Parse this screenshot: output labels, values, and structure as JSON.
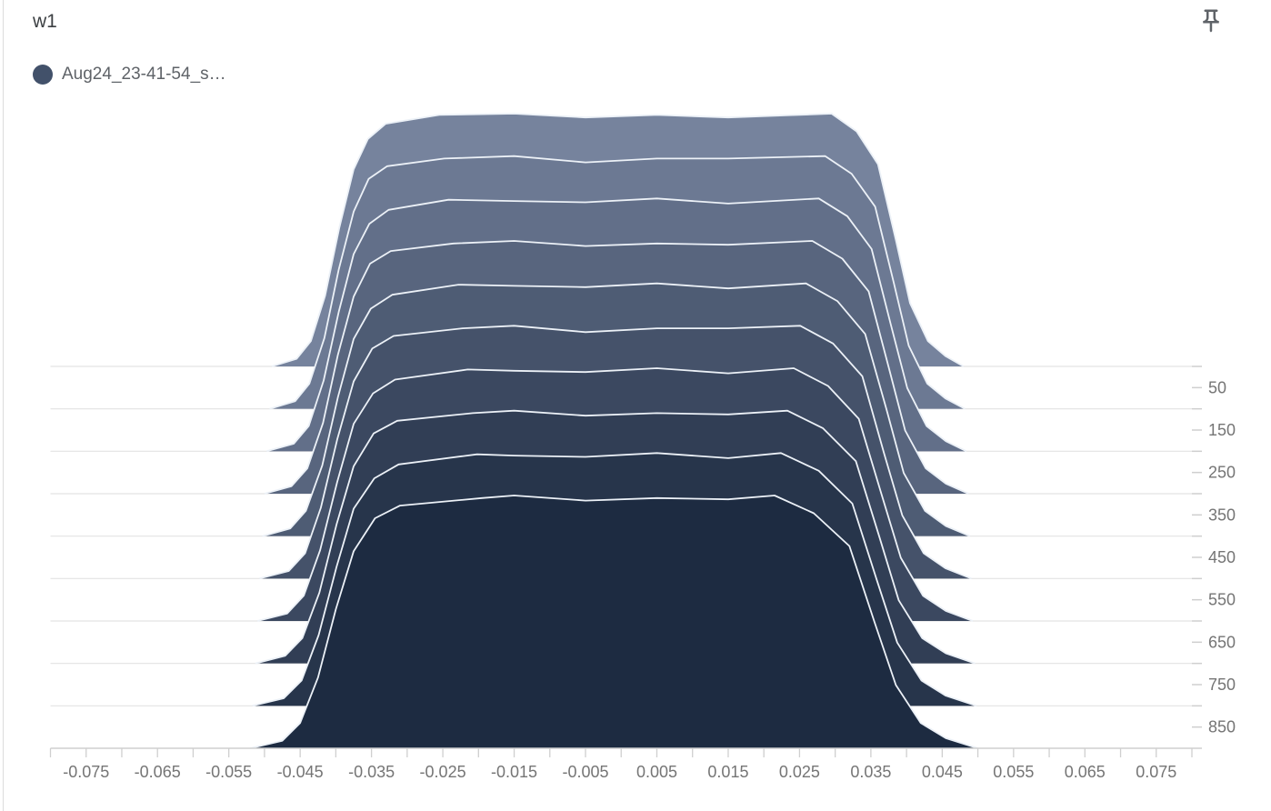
{
  "card": {
    "title": "w1"
  },
  "legend": {
    "run_label": "Aug24_23-41-54_s…",
    "run_color": "#42516a"
  },
  "toolbar": {
    "pin_icon": "push-pin-icon",
    "pin_color": "#5f6368"
  },
  "chart_data": {
    "type": "histogram-ridgeline",
    "title": "w1",
    "run": "Aug24_23-41-54_s…",
    "xlim": [
      -0.08,
      0.08
    ],
    "x_minor_tick_step": 0.005,
    "x_tick_labels": [
      -0.075,
      -0.065,
      -0.055,
      -0.045,
      -0.035,
      -0.025,
      -0.015,
      -0.005,
      0.005,
      0.015,
      0.025,
      0.035,
      0.045,
      0.055,
      0.065,
      0.075
    ],
    "step_axis": {
      "range": [
        0,
        900
      ],
      "gridline_every": 100,
      "tick_every": 50,
      "label_ticks": [
        50,
        150,
        250,
        350,
        450,
        550,
        650,
        750,
        850
      ]
    },
    "steps": [
      0,
      100,
      200,
      300,
      400,
      500,
      600,
      700,
      800,
      900
    ],
    "fill_colors": [
      "#76839d",
      "#6c7993",
      "#626f89",
      "#58657e",
      "#4e5c74",
      "#45526a",
      "#3b4860",
      "#313e55",
      "#27354b",
      "#1d2b41"
    ],
    "stroke_color": "#ecf1f7",
    "gridline_color": "#e3e3e3",
    "axis_line_color": "#cfcfcf",
    "tick_color": "#cfcfcf",
    "tick_label_color": "#757575",
    "series": [
      {
        "step": 0,
        "points": [
          [
            -0.049,
            0
          ],
          [
            -0.0455,
            0.03
          ],
          [
            -0.0435,
            0.1
          ],
          [
            -0.0415,
            0.28
          ],
          [
            -0.0395,
            0.55
          ],
          [
            -0.0375,
            0.78
          ],
          [
            -0.0355,
            0.9
          ],
          [
            -0.033,
            0.96
          ],
          [
            -0.0255,
            0.995
          ],
          [
            -0.015,
            1.0
          ],
          [
            -0.005,
            0.985
          ],
          [
            0.005,
            0.995
          ],
          [
            0.015,
            0.985
          ],
          [
            0.0295,
            1.0
          ],
          [
            0.033,
            0.93
          ],
          [
            0.036,
            0.8
          ],
          [
            0.0385,
            0.5
          ],
          [
            0.0405,
            0.25
          ],
          [
            0.043,
            0.1
          ],
          [
            0.0455,
            0.04
          ],
          [
            0.048,
            0
          ]
        ]
      },
      {
        "step": 100,
        "points": [
          [
            -0.0493,
            0
          ],
          [
            -0.0457,
            0.03
          ],
          [
            -0.0437,
            0.1
          ],
          [
            -0.0416,
            0.28
          ],
          [
            -0.0396,
            0.55
          ],
          [
            -0.0375,
            0.78
          ],
          [
            -0.0354,
            0.91
          ],
          [
            -0.0328,
            0.96
          ],
          [
            -0.0248,
            0.99
          ],
          [
            -0.015,
            1.0
          ],
          [
            -0.005,
            0.975
          ],
          [
            0.005,
            0.99
          ],
          [
            0.015,
            0.99
          ],
          [
            0.0286,
            1.0
          ],
          [
            0.0323,
            0.93
          ],
          [
            0.0356,
            0.8
          ],
          [
            0.0382,
            0.5
          ],
          [
            0.0403,
            0.25
          ],
          [
            0.0429,
            0.1
          ],
          [
            0.0455,
            0.04
          ],
          [
            0.0482,
            0
          ]
        ]
      },
      {
        "step": 200,
        "points": [
          [
            -0.0497,
            0
          ],
          [
            -0.0459,
            0.03
          ],
          [
            -0.0438,
            0.1
          ],
          [
            -0.0417,
            0.28
          ],
          [
            -0.0396,
            0.55
          ],
          [
            -0.0375,
            0.78
          ],
          [
            -0.0353,
            0.9
          ],
          [
            -0.0326,
            0.955
          ],
          [
            -0.0242,
            0.995
          ],
          [
            -0.015,
            0.99
          ],
          [
            -0.005,
            0.985
          ],
          [
            0.005,
            1.0
          ],
          [
            0.015,
            0.98
          ],
          [
            0.0277,
            1.0
          ],
          [
            0.0317,
            0.93
          ],
          [
            0.0351,
            0.8
          ],
          [
            0.0378,
            0.5
          ],
          [
            0.0401,
            0.25
          ],
          [
            0.0428,
            0.1
          ],
          [
            0.0455,
            0.04
          ],
          [
            0.0484,
            0
          ]
        ]
      },
      {
        "step": 300,
        "points": [
          [
            -0.05,
            0
          ],
          [
            -0.0462,
            0.03
          ],
          [
            -0.044,
            0.1
          ],
          [
            -0.0418,
            0.28
          ],
          [
            -0.0397,
            0.55
          ],
          [
            -0.0375,
            0.78
          ],
          [
            -0.0352,
            0.91
          ],
          [
            -0.0323,
            0.96
          ],
          [
            -0.0235,
            0.99
          ],
          [
            -0.015,
            1.0
          ],
          [
            -0.005,
            0.98
          ],
          [
            0.005,
            0.99
          ],
          [
            0.015,
            0.985
          ],
          [
            0.0268,
            1.0
          ],
          [
            0.031,
            0.93
          ],
          [
            0.0347,
            0.8
          ],
          [
            0.0375,
            0.5
          ],
          [
            0.0398,
            0.25
          ],
          [
            0.0427,
            0.1
          ],
          [
            0.0455,
            0.04
          ],
          [
            0.0487,
            0
          ]
        ]
      },
      {
        "step": 400,
        "points": [
          [
            -0.0503,
            0
          ],
          [
            -0.0464,
            0.03
          ],
          [
            -0.0442,
            0.1
          ],
          [
            -0.0419,
            0.28
          ],
          [
            -0.0397,
            0.55
          ],
          [
            -0.0375,
            0.78
          ],
          [
            -0.0351,
            0.9
          ],
          [
            -0.0321,
            0.955
          ],
          [
            -0.0228,
            0.995
          ],
          [
            -0.015,
            0.99
          ],
          [
            -0.005,
            0.985
          ],
          [
            0.005,
            1.0
          ],
          [
            0.015,
            0.98
          ],
          [
            0.0259,
            1.0
          ],
          [
            0.0303,
            0.93
          ],
          [
            0.0342,
            0.8
          ],
          [
            0.0372,
            0.5
          ],
          [
            0.0396,
            0.25
          ],
          [
            0.0426,
            0.1
          ],
          [
            0.0455,
            0.04
          ],
          [
            0.0489,
            0
          ]
        ]
      },
      {
        "step": 500,
        "points": [
          [
            -0.0507,
            0
          ],
          [
            -0.0466,
            0.03
          ],
          [
            -0.0443,
            0.1
          ],
          [
            -0.0421,
            0.28
          ],
          [
            -0.0398,
            0.55
          ],
          [
            -0.0375,
            0.78
          ],
          [
            -0.0349,
            0.91
          ],
          [
            -0.0319,
            0.96
          ],
          [
            -0.0222,
            0.99
          ],
          [
            -0.015,
            1.0
          ],
          [
            -0.005,
            0.975
          ],
          [
            0.005,
            0.99
          ],
          [
            0.015,
            0.99
          ],
          [
            0.0251,
            1.0
          ],
          [
            0.0297,
            0.93
          ],
          [
            0.0338,
            0.8
          ],
          [
            0.0368,
            0.5
          ],
          [
            0.0394,
            0.25
          ],
          [
            0.0424,
            0.1
          ],
          [
            0.0455,
            0.04
          ],
          [
            0.0491,
            0
          ]
        ]
      },
      {
        "step": 600,
        "points": [
          [
            -0.051,
            0
          ],
          [
            -0.0468,
            0.03
          ],
          [
            -0.0445,
            0.1
          ],
          [
            -0.0422,
            0.28
          ],
          [
            -0.0398,
            0.55
          ],
          [
            -0.0375,
            0.78
          ],
          [
            -0.0348,
            0.9
          ],
          [
            -0.0317,
            0.955
          ],
          [
            -0.0215,
            0.995
          ],
          [
            -0.015,
            0.99
          ],
          [
            -0.005,
            0.985
          ],
          [
            0.005,
            1.0
          ],
          [
            0.015,
            0.98
          ],
          [
            0.0242,
            1.0
          ],
          [
            0.029,
            0.93
          ],
          [
            0.0333,
            0.8
          ],
          [
            0.0365,
            0.5
          ],
          [
            0.0392,
            0.25
          ],
          [
            0.0423,
            0.1
          ],
          [
            0.0455,
            0.04
          ],
          [
            0.0493,
            0
          ]
        ]
      },
      {
        "step": 700,
        "points": [
          [
            -0.0513,
            0
          ],
          [
            -0.0471,
            0.03
          ],
          [
            -0.0447,
            0.1
          ],
          [
            -0.0423,
            0.28
          ],
          [
            -0.0399,
            0.55
          ],
          [
            -0.0375,
            0.78
          ],
          [
            -0.0347,
            0.91
          ],
          [
            -0.0314,
            0.96
          ],
          [
            -0.0208,
            0.99
          ],
          [
            -0.015,
            1.0
          ],
          [
            -0.005,
            0.98
          ],
          [
            0.005,
            0.99
          ],
          [
            0.015,
            0.985
          ],
          [
            0.0233,
            1.0
          ],
          [
            0.0283,
            0.93
          ],
          [
            0.0329,
            0.8
          ],
          [
            0.0362,
            0.5
          ],
          [
            0.0389,
            0.25
          ],
          [
            0.0422,
            0.1
          ],
          [
            0.0455,
            0.04
          ],
          [
            0.0496,
            0
          ]
        ]
      },
      {
        "step": 800,
        "points": [
          [
            -0.0517,
            0
          ],
          [
            -0.0473,
            0.03
          ],
          [
            -0.0448,
            0.1
          ],
          [
            -0.0424,
            0.28
          ],
          [
            -0.0399,
            0.55
          ],
          [
            -0.0375,
            0.78
          ],
          [
            -0.0346,
            0.9
          ],
          [
            -0.0312,
            0.955
          ],
          [
            -0.0202,
            0.995
          ],
          [
            -0.015,
            0.99
          ],
          [
            -0.005,
            0.985
          ],
          [
            0.005,
            1.0
          ],
          [
            0.015,
            0.98
          ],
          [
            0.0224,
            1.0
          ],
          [
            0.0277,
            0.93
          ],
          [
            0.0324,
            0.8
          ],
          [
            0.0358,
            0.5
          ],
          [
            0.0387,
            0.25
          ],
          [
            0.0421,
            0.1
          ],
          [
            0.0455,
            0.04
          ],
          [
            0.0498,
            0
          ]
        ]
      },
      {
        "step": 900,
        "points": [
          [
            -0.052,
            0
          ],
          [
            -0.0475,
            0.03
          ],
          [
            -0.045,
            0.1
          ],
          [
            -0.0425,
            0.28
          ],
          [
            -0.04,
            0.55
          ],
          [
            -0.0375,
            0.78
          ],
          [
            -0.0345,
            0.91
          ],
          [
            -0.031,
            0.96
          ],
          [
            -0.0195,
            0.99
          ],
          [
            -0.015,
            1.0
          ],
          [
            -0.005,
            0.98
          ],
          [
            0.005,
            0.99
          ],
          [
            0.015,
            0.985
          ],
          [
            0.0215,
            1.0
          ],
          [
            0.027,
            0.93
          ],
          [
            0.032,
            0.8
          ],
          [
            0.0355,
            0.5
          ],
          [
            0.0385,
            0.25
          ],
          [
            0.042,
            0.1
          ],
          [
            0.0455,
            0.04
          ],
          [
            0.05,
            0
          ]
        ]
      }
    ]
  }
}
